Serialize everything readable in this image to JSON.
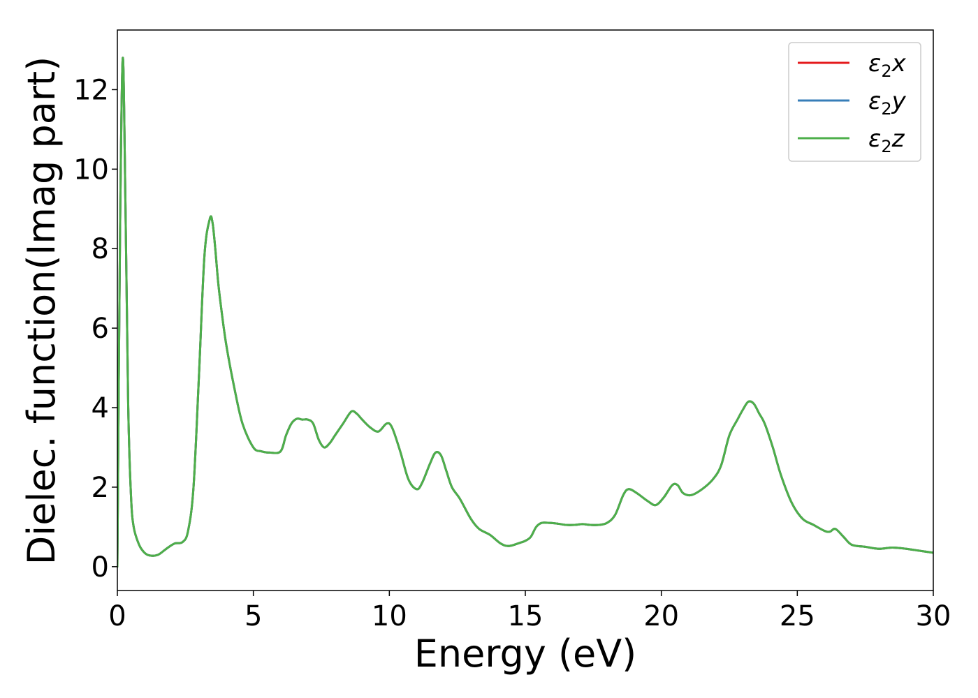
{
  "chart_data": {
    "type": "line",
    "xlabel": "Energy (eV)",
    "ylabel": "Dielec. function(Imag part)",
    "xlim": [
      0,
      30
    ],
    "ylim": [
      -0.6,
      13.5
    ],
    "xticks": [
      0,
      5,
      10,
      15,
      20,
      25,
      30
    ],
    "yticks": [
      0,
      2,
      4,
      6,
      8,
      10,
      12
    ],
    "grid": false,
    "legend_position": "top-right",
    "series": [
      {
        "name": "ε2x",
        "legend": {
          "base": "ε",
          "sub": "2",
          "suffix": "x"
        },
        "color": "#e41a1c",
        "x": [
          0,
          0.1,
          0.2,
          0.3,
          0.4,
          0.5,
          0.6,
          0.8,
          1.0,
          1.2,
          1.5,
          1.8,
          2.1,
          2.4,
          2.6,
          2.8,
          3.0,
          3.2,
          3.4,
          3.5,
          3.6,
          3.7,
          3.8,
          4.0,
          4.3,
          4.6,
          5.0,
          5.3,
          5.6,
          6.0,
          6.2,
          6.4,
          6.6,
          6.8,
          7.0,
          7.2,
          7.4,
          7.6,
          7.8,
          8.0,
          8.3,
          8.6,
          8.8,
          9.0,
          9.3,
          9.6,
          9.9,
          10.1,
          10.4,
          10.7,
          11.0,
          11.2,
          11.5,
          11.7,
          11.9,
          12.1,
          12.3,
          12.6,
          13.0,
          13.3,
          13.7,
          14.1,
          14.4,
          14.8,
          15.0,
          15.2,
          15.4,
          15.6,
          15.9,
          16.2,
          16.5,
          16.8,
          17.1,
          17.4,
          17.7,
          18.0,
          18.3,
          18.6,
          18.8,
          19.1,
          19.5,
          19.8,
          20.1,
          20.4,
          20.6,
          20.8,
          21.1,
          21.5,
          21.9,
          22.2,
          22.5,
          22.8,
          23.0,
          23.2,
          23.4,
          23.6,
          23.8,
          24.1,
          24.4,
          24.8,
          25.2,
          25.6,
          26.0,
          26.2,
          26.4,
          26.7,
          27.0,
          27.5,
          28.0,
          28.5,
          29.0,
          29.5,
          30.0
        ],
        "values": [
          0,
          8.5,
          12.8,
          9.0,
          4.0,
          1.8,
          1.0,
          0.55,
          0.35,
          0.28,
          0.3,
          0.45,
          0.58,
          0.62,
          0.9,
          2.0,
          4.8,
          7.8,
          8.75,
          8.65,
          8.0,
          7.2,
          6.6,
          5.6,
          4.5,
          3.6,
          3.0,
          2.9,
          2.87,
          2.9,
          3.3,
          3.6,
          3.72,
          3.7,
          3.7,
          3.6,
          3.2,
          3.0,
          3.1,
          3.3,
          3.6,
          3.9,
          3.85,
          3.7,
          3.5,
          3.4,
          3.6,
          3.5,
          2.9,
          2.2,
          1.95,
          2.1,
          2.6,
          2.87,
          2.8,
          2.4,
          2.0,
          1.7,
          1.2,
          0.95,
          0.8,
          0.58,
          0.52,
          0.6,
          0.65,
          0.75,
          1.0,
          1.1,
          1.1,
          1.08,
          1.05,
          1.05,
          1.07,
          1.05,
          1.05,
          1.1,
          1.3,
          1.8,
          1.95,
          1.85,
          1.65,
          1.55,
          1.75,
          2.05,
          2.05,
          1.85,
          1.8,
          1.95,
          2.2,
          2.55,
          3.3,
          3.7,
          3.95,
          4.15,
          4.1,
          3.85,
          3.6,
          3.0,
          2.3,
          1.6,
          1.2,
          1.05,
          0.9,
          0.88,
          0.95,
          0.75,
          0.55,
          0.5,
          0.45,
          0.48,
          0.45,
          0.4,
          0.35
        ]
      },
      {
        "name": "ε2y",
        "legend": {
          "base": "ε",
          "sub": "2",
          "suffix": "y"
        },
        "color": "#377eb8",
        "x": [
          0,
          0.1,
          0.2,
          0.3,
          0.4,
          0.5,
          0.6,
          0.8,
          1.0,
          1.2,
          1.5,
          1.8,
          2.1,
          2.4,
          2.6,
          2.8,
          3.0,
          3.2,
          3.4,
          3.5,
          3.6,
          3.7,
          3.8,
          4.0,
          4.3,
          4.6,
          5.0,
          5.3,
          5.6,
          6.0,
          6.2,
          6.4,
          6.6,
          6.8,
          7.0,
          7.2,
          7.4,
          7.6,
          7.8,
          8.0,
          8.3,
          8.6,
          8.8,
          9.0,
          9.3,
          9.6,
          9.9,
          10.1,
          10.4,
          10.7,
          11.0,
          11.2,
          11.5,
          11.7,
          11.9,
          12.1,
          12.3,
          12.6,
          13.0,
          13.3,
          13.7,
          14.1,
          14.4,
          14.8,
          15.0,
          15.2,
          15.4,
          15.6,
          15.9,
          16.2,
          16.5,
          16.8,
          17.1,
          17.4,
          17.7,
          18.0,
          18.3,
          18.6,
          18.8,
          19.1,
          19.5,
          19.8,
          20.1,
          20.4,
          20.6,
          20.8,
          21.1,
          21.5,
          21.9,
          22.2,
          22.5,
          22.8,
          23.0,
          23.2,
          23.4,
          23.6,
          23.8,
          24.1,
          24.4,
          24.8,
          25.2,
          25.6,
          26.0,
          26.2,
          26.4,
          26.7,
          27.0,
          27.5,
          28.0,
          28.5,
          29.0,
          29.5,
          30.0
        ],
        "values": [
          0,
          8.5,
          12.8,
          9.0,
          4.0,
          1.8,
          1.0,
          0.55,
          0.35,
          0.28,
          0.3,
          0.45,
          0.58,
          0.62,
          0.9,
          2.0,
          4.8,
          7.8,
          8.75,
          8.65,
          8.0,
          7.2,
          6.6,
          5.6,
          4.5,
          3.6,
          3.0,
          2.9,
          2.87,
          2.9,
          3.3,
          3.6,
          3.72,
          3.7,
          3.7,
          3.6,
          3.2,
          3.0,
          3.1,
          3.3,
          3.6,
          3.9,
          3.85,
          3.7,
          3.5,
          3.4,
          3.6,
          3.5,
          2.9,
          2.2,
          1.95,
          2.1,
          2.6,
          2.87,
          2.8,
          2.4,
          2.0,
          1.7,
          1.2,
          0.95,
          0.8,
          0.58,
          0.52,
          0.6,
          0.65,
          0.75,
          1.0,
          1.1,
          1.1,
          1.08,
          1.05,
          1.05,
          1.07,
          1.05,
          1.05,
          1.1,
          1.3,
          1.8,
          1.95,
          1.85,
          1.65,
          1.55,
          1.75,
          2.05,
          2.05,
          1.85,
          1.8,
          1.95,
          2.2,
          2.55,
          3.3,
          3.7,
          3.95,
          4.15,
          4.1,
          3.85,
          3.6,
          3.0,
          2.3,
          1.6,
          1.2,
          1.05,
          0.9,
          0.88,
          0.95,
          0.75,
          0.55,
          0.5,
          0.45,
          0.48,
          0.45,
          0.4,
          0.35
        ]
      },
      {
        "name": "ε2z",
        "legend": {
          "base": "ε",
          "sub": "2",
          "suffix": "z"
        },
        "color": "#4daf4a",
        "x": [
          0,
          0.1,
          0.2,
          0.3,
          0.4,
          0.5,
          0.6,
          0.8,
          1.0,
          1.2,
          1.5,
          1.8,
          2.1,
          2.4,
          2.6,
          2.8,
          3.0,
          3.2,
          3.4,
          3.5,
          3.6,
          3.7,
          3.8,
          4.0,
          4.3,
          4.6,
          5.0,
          5.3,
          5.6,
          6.0,
          6.2,
          6.4,
          6.6,
          6.8,
          7.0,
          7.2,
          7.4,
          7.6,
          7.8,
          8.0,
          8.3,
          8.6,
          8.8,
          9.0,
          9.3,
          9.6,
          9.9,
          10.1,
          10.4,
          10.7,
          11.0,
          11.2,
          11.5,
          11.7,
          11.9,
          12.1,
          12.3,
          12.6,
          13.0,
          13.3,
          13.7,
          14.1,
          14.4,
          14.8,
          15.0,
          15.2,
          15.4,
          15.6,
          15.9,
          16.2,
          16.5,
          16.8,
          17.1,
          17.4,
          17.7,
          18.0,
          18.3,
          18.6,
          18.8,
          19.1,
          19.5,
          19.8,
          20.1,
          20.4,
          20.6,
          20.8,
          21.1,
          21.5,
          21.9,
          22.2,
          22.5,
          22.8,
          23.0,
          23.2,
          23.4,
          23.6,
          23.8,
          24.1,
          24.4,
          24.8,
          25.2,
          25.6,
          26.0,
          26.2,
          26.4,
          26.7,
          27.0,
          27.5,
          28.0,
          28.5,
          29.0,
          29.5,
          30.0
        ],
        "values": [
          0,
          8.5,
          12.8,
          9.0,
          4.0,
          1.8,
          1.0,
          0.55,
          0.35,
          0.28,
          0.3,
          0.45,
          0.58,
          0.62,
          0.9,
          2.0,
          4.8,
          7.8,
          8.75,
          8.65,
          8.0,
          7.2,
          6.6,
          5.6,
          4.5,
          3.6,
          3.0,
          2.9,
          2.87,
          2.9,
          3.3,
          3.6,
          3.72,
          3.7,
          3.7,
          3.6,
          3.2,
          3.0,
          3.1,
          3.3,
          3.6,
          3.9,
          3.85,
          3.7,
          3.5,
          3.4,
          3.6,
          3.5,
          2.9,
          2.2,
          1.95,
          2.1,
          2.6,
          2.87,
          2.8,
          2.4,
          2.0,
          1.7,
          1.2,
          0.95,
          0.8,
          0.58,
          0.52,
          0.6,
          0.65,
          0.75,
          1.0,
          1.1,
          1.1,
          1.08,
          1.05,
          1.05,
          1.07,
          1.05,
          1.05,
          1.1,
          1.3,
          1.8,
          1.95,
          1.85,
          1.65,
          1.55,
          1.75,
          2.05,
          2.05,
          1.85,
          1.8,
          1.95,
          2.2,
          2.55,
          3.3,
          3.7,
          3.95,
          4.15,
          4.1,
          3.85,
          3.6,
          3.0,
          2.3,
          1.6,
          1.2,
          1.05,
          0.9,
          0.88,
          0.95,
          0.75,
          0.55,
          0.5,
          0.45,
          0.48,
          0.45,
          0.4,
          0.35
        ]
      }
    ]
  }
}
